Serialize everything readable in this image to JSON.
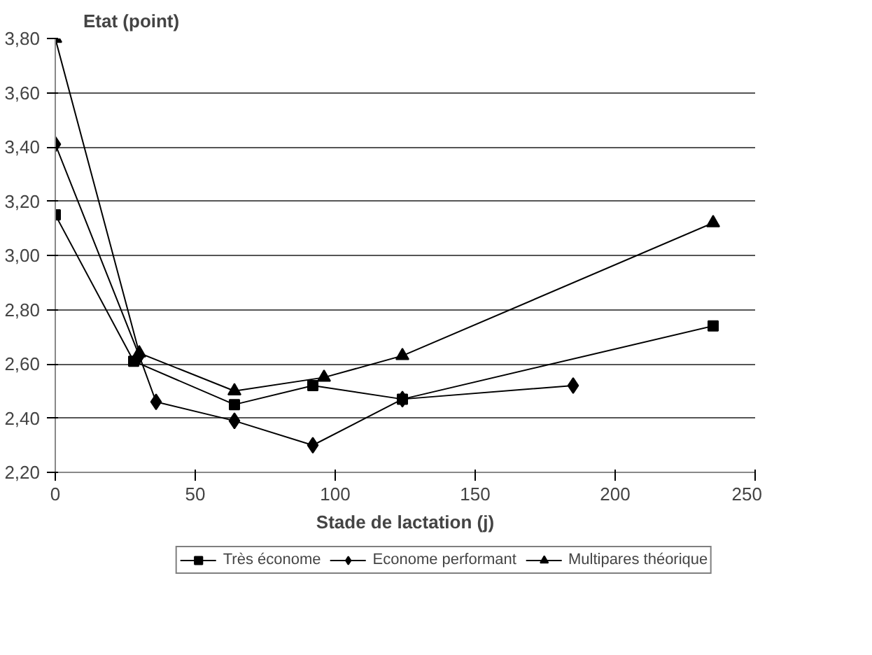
{
  "chart_data": {
    "type": "line",
    "ylabel": "Etat (point)",
    "xlabel": "Stade de lactation (j)",
    "xlim": [
      0,
      250
    ],
    "xticks": [
      0,
      50,
      100,
      150,
      200,
      250
    ],
    "ylim": [
      2.2,
      3.8
    ],
    "yticks": [
      {
        "value": 2.2,
        "label": "2,20"
      },
      {
        "value": 2.4,
        "label": "2,40"
      },
      {
        "value": 2.6,
        "label": "2,60"
      },
      {
        "value": 2.8,
        "label": "2,80"
      },
      {
        "value": 3.0,
        "label": "3,00"
      },
      {
        "value": 3.2,
        "label": "3,20"
      },
      {
        "value": 3.4,
        "label": "3,40"
      },
      {
        "value": 3.6,
        "label": "3,60"
      },
      {
        "value": 3.8,
        "label": "3,80"
      }
    ],
    "grid": "y",
    "legend": "bottom",
    "line_style": "solid",
    "series": [
      {
        "name": "Très économe",
        "color": "#000000",
        "marker": "square",
        "x": [
          0,
          28,
          64,
          92,
          124,
          235
        ],
        "values": [
          3.15,
          2.61,
          2.45,
          2.52,
          2.47,
          2.74
        ]
      },
      {
        "name": "Econome performant",
        "color": "#000000",
        "marker": "diamond",
        "x": [
          0,
          30,
          36,
          64,
          92,
          124,
          185
        ],
        "values": [
          3.41,
          2.63,
          2.46,
          2.39,
          2.3,
          2.47,
          2.52
        ]
      },
      {
        "name": "Multipares théorique",
        "color": "#000000",
        "marker": "triangle",
        "x": [
          0,
          30,
          64,
          96,
          124,
          235
        ],
        "values": [
          3.8,
          2.64,
          2.5,
          2.55,
          2.63,
          3.12
        ]
      }
    ]
  }
}
